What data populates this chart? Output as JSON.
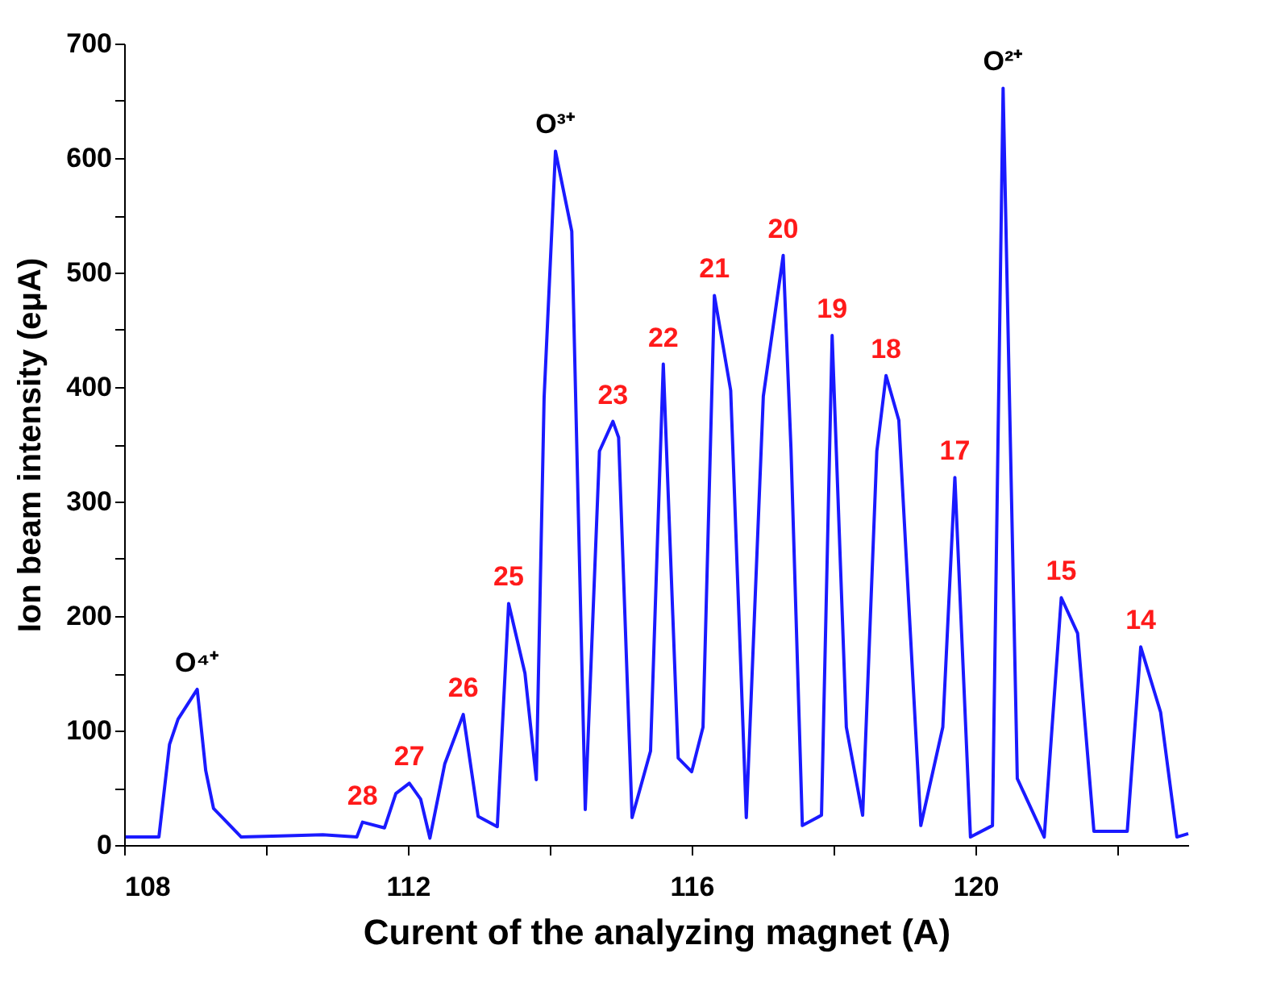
{
  "chart_data": {
    "type": "line",
    "xlabel": "Curent of the analyzing magnet (A)",
    "ylabel": "Ion beam intensity (eμA)",
    "xlim": [
      108,
      123
    ],
    "ylim": [
      0,
      700
    ],
    "xticks": [
      108,
      {
        "value": 110,
        "label": null
      },
      112,
      {
        "value": 114,
        "label": null
      },
      116,
      {
        "value": 118,
        "label": null
      },
      120,
      {
        "value": 122,
        "label": null
      }
    ],
    "yticks": [
      0,
      {
        "value": 50,
        "label": null
      },
      100,
      {
        "value": 150,
        "label": null
      },
      200,
      {
        "value": 250,
        "label": null
      },
      300,
      {
        "value": 350,
        "label": null
      },
      400,
      {
        "value": 450,
        "label": null
      },
      500,
      {
        "value": 550,
        "label": null
      },
      600,
      {
        "value": 650,
        "label": null
      },
      700
    ],
    "grid": false,
    "legend": false,
    "marker": "none",
    "line_style": "solid",
    "series": [
      {
        "color": "#1a1aff",
        "x": [
          108.02,
          108.49,
          108.64,
          108.76,
          109.03,
          109.15,
          109.26,
          109.65,
          110.2,
          110.8,
          111.28,
          111.36,
          111.67,
          111.83,
          112.02,
          112.18,
          112.31,
          112.52,
          112.78,
          112.99,
          113.26,
          113.42,
          113.65,
          113.81,
          113.92,
          114.08,
          114.31,
          114.5,
          114.7,
          114.89,
          114.97,
          115.16,
          115.42,
          115.6,
          115.81,
          116.0,
          116.16,
          116.32,
          116.55,
          116.77,
          117.01,
          117.29,
          117.4,
          117.56,
          117.83,
          117.98,
          118.18,
          118.41,
          118.61,
          118.74,
          118.92,
          119.23,
          119.54,
          119.71,
          119.93,
          120.24,
          120.39,
          120.59,
          120.97,
          121.21,
          121.44,
          121.67,
          122.14,
          122.33,
          122.61,
          122.84,
          123.0
        ],
        "values": [
          7,
          7,
          88,
          110,
          136,
          65,
          32,
          7,
          8,
          9,
          7,
          20,
          15,
          45,
          54,
          40,
          6,
          71,
          114,
          25,
          16,
          211,
          150,
          57,
          391,
          606,
          536,
          31,
          344,
          370,
          356,
          24,
          82,
          420,
          76,
          64,
          103,
          480,
          397,
          24,
          392,
          515,
          346,
          17,
          26,
          445,
          103,
          26,
          344,
          410,
          371,
          17,
          103,
          321,
          7,
          17,
          661,
          58,
          7,
          216,
          185,
          12,
          12,
          173,
          116,
          7,
          10
        ]
      }
    ],
    "annotations": [
      {
        "text": "O⁴⁺",
        "x": 109.03,
        "y": 136
      },
      {
        "text": "O³⁺",
        "x": 114.08,
        "y": 606
      },
      {
        "text": "O²⁺",
        "x": 120.39,
        "y": 661
      },
      {
        "text": "28",
        "x": 111.36,
        "y": 20
      },
      {
        "text": "27",
        "x": 112.02,
        "y": 54
      },
      {
        "text": "26",
        "x": 112.78,
        "y": 114
      },
      {
        "text": "25",
        "x": 113.42,
        "y": 211
      },
      {
        "text": "23",
        "x": 114.89,
        "y": 370
      },
      {
        "text": "22",
        "x": 115.6,
        "y": 420
      },
      {
        "text": "21",
        "x": 116.32,
        "y": 480
      },
      {
        "text": "20",
        "x": 117.29,
        "y": 515
      },
      {
        "text": "19",
        "x": 117.98,
        "y": 445
      },
      {
        "text": "18",
        "x": 118.74,
        "y": 410
      },
      {
        "text": "17",
        "x": 119.71,
        "y": 321
      },
      {
        "text": "15",
        "x": 121.21,
        "y": 216
      },
      {
        "text": "14",
        "x": 122.33,
        "y": 173
      }
    ]
  }
}
